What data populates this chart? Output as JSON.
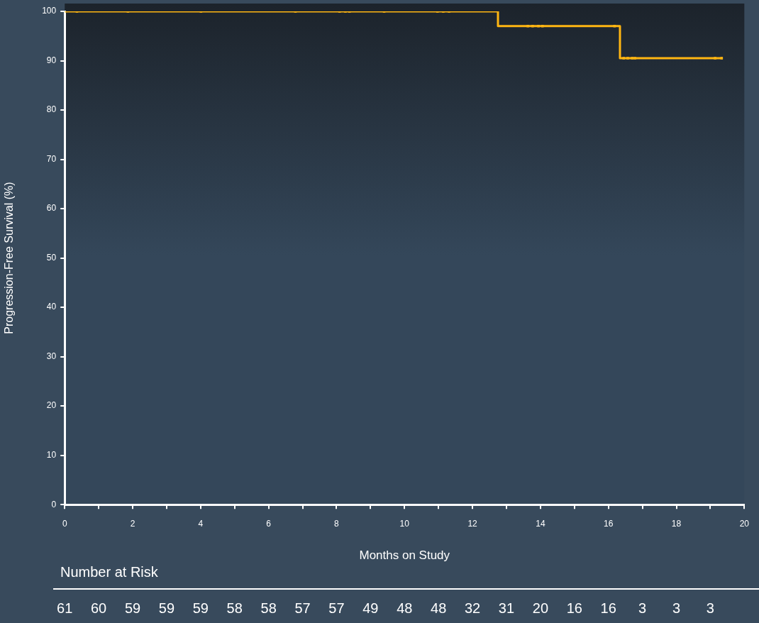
{
  "chart_data": {
    "type": "step",
    "xlabel": "Months on Study",
    "ylabel": "Progression-Free Survival (%)",
    "xlim": [
      0,
      20
    ],
    "xticks": [
      0,
      {
        "value": 1,
        "label": null
      },
      2,
      {
        "value": 3,
        "label": null
      },
      4,
      {
        "value": 5,
        "label": null
      },
      6,
      {
        "value": 7,
        "label": null
      },
      8,
      {
        "value": 9,
        "label": null
      },
      10,
      {
        "value": 11,
        "label": null
      },
      12,
      {
        "value": 13,
        "label": null
      },
      14,
      {
        "value": 15,
        "label": null
      },
      16,
      {
        "value": 17,
        "label": null
      },
      18,
      {
        "value": 19,
        "label": null
      },
      20
    ],
    "ylim": [
      0,
      100
    ],
    "yticks": [
      0,
      10,
      20,
      30,
      40,
      50,
      60,
      70,
      80,
      90,
      100
    ],
    "grid": false,
    "legend": false,
    "series": [
      {
        "color": "#ffb612",
        "marker": "none",
        "x": [
          0,
          12.75,
          16.34,
          19.37
        ],
        "values": [
          100,
          97,
          90.5,
          90.5
        ]
      },
      {
        "type": "scatter",
        "color": "#ffb612",
        "marker": "square",
        "x": [
          0.36,
          1.86,
          4.01,
          6.79,
          8.09,
          8.26,
          8.38,
          9.4,
          10.97,
          11.14,
          11.31,
          13.63,
          13.77,
          13.94,
          14.06,
          16.18,
          16.45,
          16.57,
          16.7,
          16.78,
          19.14,
          19.33
        ],
        "values": [
          100,
          100,
          100,
          100,
          100,
          100,
          100,
          100,
          100,
          100,
          100,
          97,
          97,
          97,
          97,
          97,
          90.5,
          90.5,
          90.5,
          90.5,
          90.5,
          90.5
        ]
      }
    ],
    "annotations": [
      "Number at Risk",
      "61",
      "60",
      "59",
      "59",
      "59",
      "58",
      "58",
      "57",
      "57",
      "49",
      "48",
      "48",
      "32",
      "31",
      "20",
      "16",
      "16",
      "3",
      "3",
      "3"
    ]
  }
}
